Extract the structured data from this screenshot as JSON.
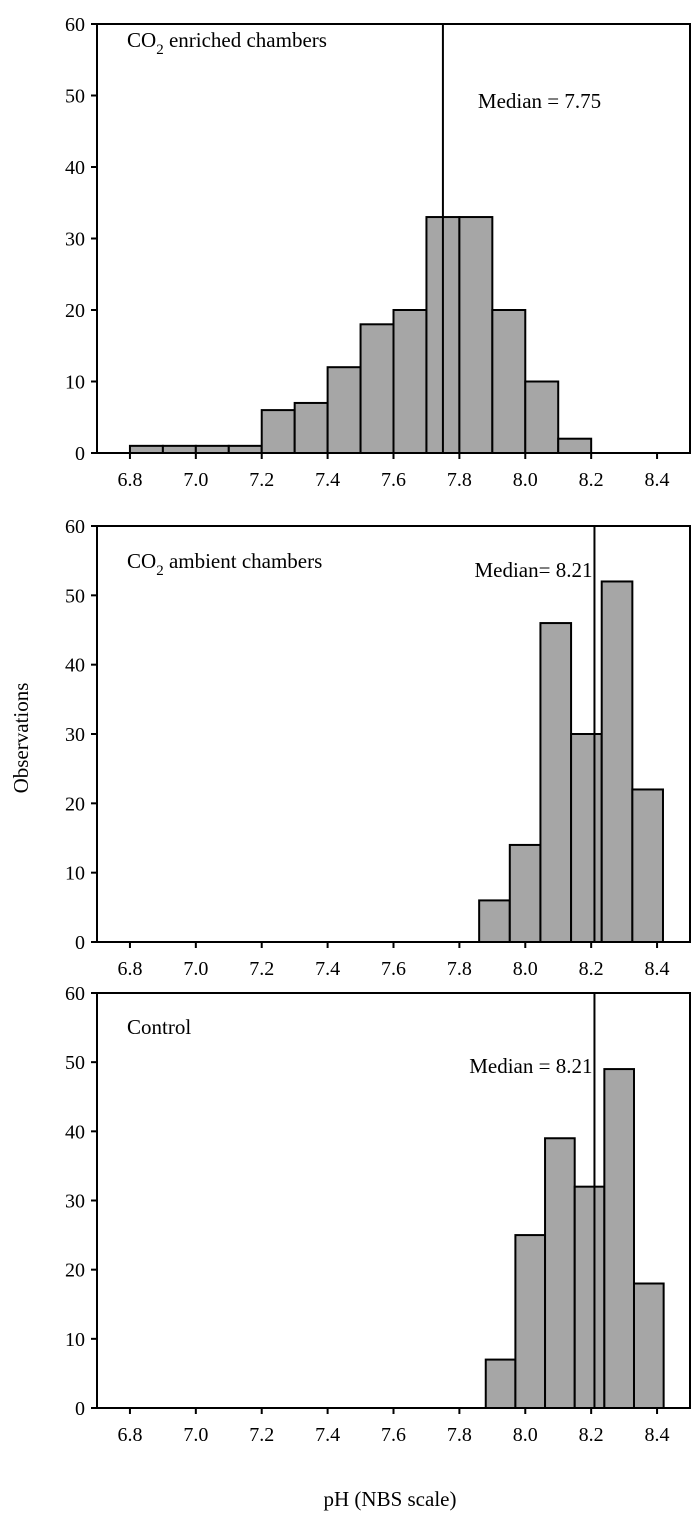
{
  "chart_data": [
    {
      "type": "bar",
      "panel_label": {
        "pre": "CO",
        "sub": "2",
        "post": " enriched chambers"
      },
      "median_label": "Median = 7.75",
      "median": 7.75,
      "bin_edges": [
        6.8,
        6.9,
        7.0,
        7.1,
        7.2,
        7.3,
        7.4,
        7.5,
        7.6,
        7.7,
        7.8,
        7.9,
        8.0,
        8.1,
        8.2
      ],
      "values": [
        1,
        1,
        1,
        1,
        6,
        7,
        12,
        18,
        20,
        33,
        33,
        20,
        10,
        2
      ],
      "xlim": [
        6.7,
        8.5
      ],
      "xticks": [
        "6.8",
        "7.0",
        "7.2",
        "7.4",
        "7.6",
        "7.8",
        "8.0",
        "8.2",
        "8.4"
      ],
      "ylim": [
        0,
        60
      ],
      "yticks": [
        "0",
        "10",
        "20",
        "30",
        "40",
        "50",
        "60"
      ]
    },
    {
      "type": "bar",
      "panel_label": {
        "pre": "CO",
        "sub": "2",
        "post": " ambient chambers"
      },
      "median_label": "Median= 8.21",
      "median": 8.21,
      "bin_edges": [
        7.86,
        7.953,
        8.046,
        8.139,
        8.232,
        8.325,
        8.418
      ],
      "values": [
        6,
        14,
        46,
        30,
        52,
        22
      ],
      "xlim": [
        6.7,
        8.5
      ],
      "xticks": [
        "6.8",
        "7.0",
        "7.2",
        "7.4",
        "7.6",
        "7.8",
        "8.0",
        "8.2",
        "8.4"
      ],
      "ylim": [
        0,
        60
      ],
      "yticks": [
        "0",
        "10",
        "20",
        "30",
        "40",
        "50",
        "60"
      ]
    },
    {
      "type": "bar",
      "panel_label": {
        "pre": "Control",
        "sub": "",
        "post": ""
      },
      "median_label": "Median = 8.21",
      "median": 8.21,
      "bin_edges": [
        7.88,
        7.97,
        8.06,
        8.15,
        8.24,
        8.33,
        8.42
      ],
      "values": [
        7,
        25,
        39,
        32,
        49,
        18
      ],
      "xlim": [
        6.7,
        8.5
      ],
      "xticks": [
        "6.8",
        "7.0",
        "7.2",
        "7.4",
        "7.6",
        "7.8",
        "8.0",
        "8.2",
        "8.4"
      ],
      "ylim": [
        0,
        60
      ],
      "yticks": [
        "0",
        "10",
        "20",
        "30",
        "40",
        "50",
        "60"
      ]
    }
  ],
  "ylabel": "Observations",
  "xlabel": "pH (NBS scale)"
}
